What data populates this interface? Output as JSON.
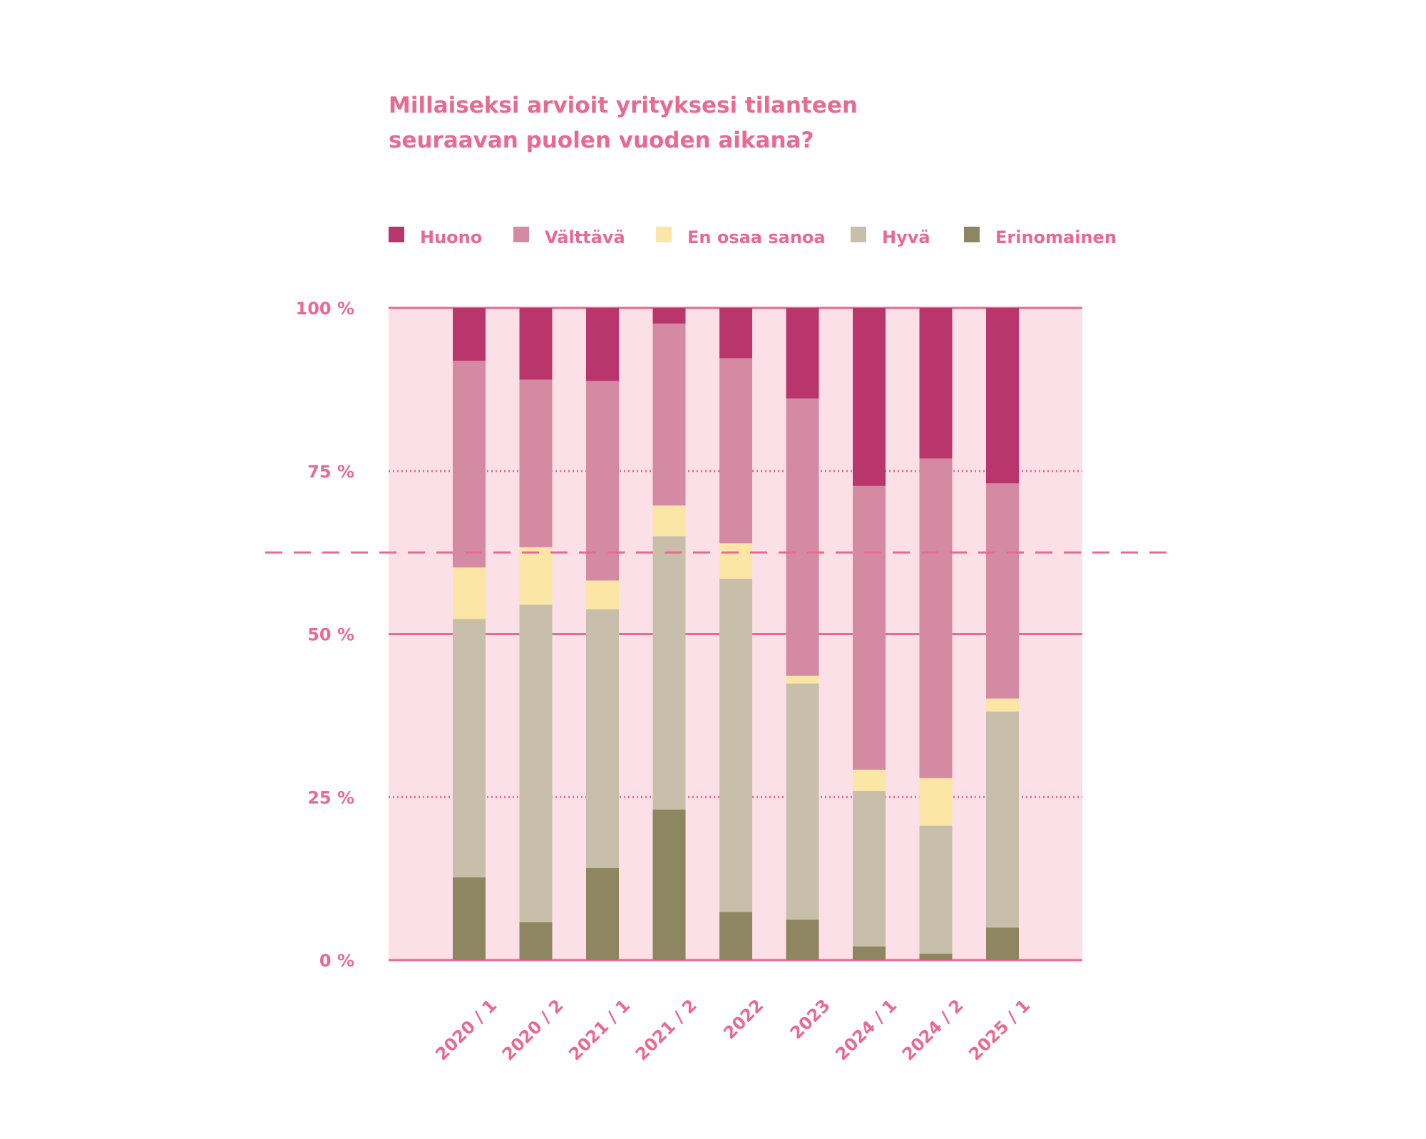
{
  "chart_data": {
    "type": "bar",
    "stacked": true,
    "title_lines": [
      "Millaiseksi arvioit yrityksesi tilanteen",
      "seuraavan puolen vuoden aikana?"
    ],
    "categories": [
      "2020 / 1",
      "2020 / 2",
      "2021 / 1",
      "2021 / 2",
      "2022",
      "2023",
      "2024 / 1",
      "2024 / 2",
      "2025 / 1"
    ],
    "series": [
      {
        "name": "Erinomainen",
        "color": "#8e8660",
        "values": [
          12.7,
          5.8,
          14.1,
          23.1,
          7.4,
          6.2,
          2.1,
          1.0,
          5.0
        ]
      },
      {
        "name": "Hyvä",
        "color": "#c8bfaa",
        "values": [
          39.6,
          48.7,
          39.7,
          41.9,
          51.1,
          36.2,
          23.8,
          19.6,
          33.1
        ]
      },
      {
        "name": "En osaa sanoa",
        "color": "#fbe6a6",
        "values": [
          7.9,
          8.8,
          4.4,
          4.7,
          5.4,
          1.2,
          3.3,
          7.3,
          2.0
        ]
      },
      {
        "name": "Välttävä",
        "color": "#d48aa3",
        "values": [
          31.7,
          25.7,
          30.6,
          27.9,
          28.4,
          42.5,
          43.5,
          49.0,
          33.0
        ]
      },
      {
        "name": "Huono",
        "color": "#b8366b",
        "values": [
          8.1,
          11.0,
          11.2,
          2.4,
          7.7,
          13.9,
          27.3,
          23.1,
          26.9
        ]
      }
    ],
    "legend_order": [
      "Huono",
      "Välttävä",
      "En osaa sanoa",
      "Hyvä",
      "Erinomainen"
    ],
    "legend_position": "top",
    "yticks": [
      {
        "value": 100,
        "label": "100 %",
        "style": "solid"
      },
      {
        "value": 75,
        "label": "75 %",
        "style": "dotted"
      },
      {
        "value": 50,
        "label": "50 %",
        "style": "solid"
      },
      {
        "value": 25,
        "label": "25 %",
        "style": "dotted"
      },
      {
        "value": 0,
        "label": "0 %",
        "style": "solid"
      }
    ],
    "ylim": [
      0,
      100
    ],
    "reference_line": {
      "value": 62.5,
      "style": "dashed"
    },
    "colors": {
      "text": "#e86a93",
      "plot_bg": "#fce0e7",
      "gridline": "#e86a93"
    }
  }
}
